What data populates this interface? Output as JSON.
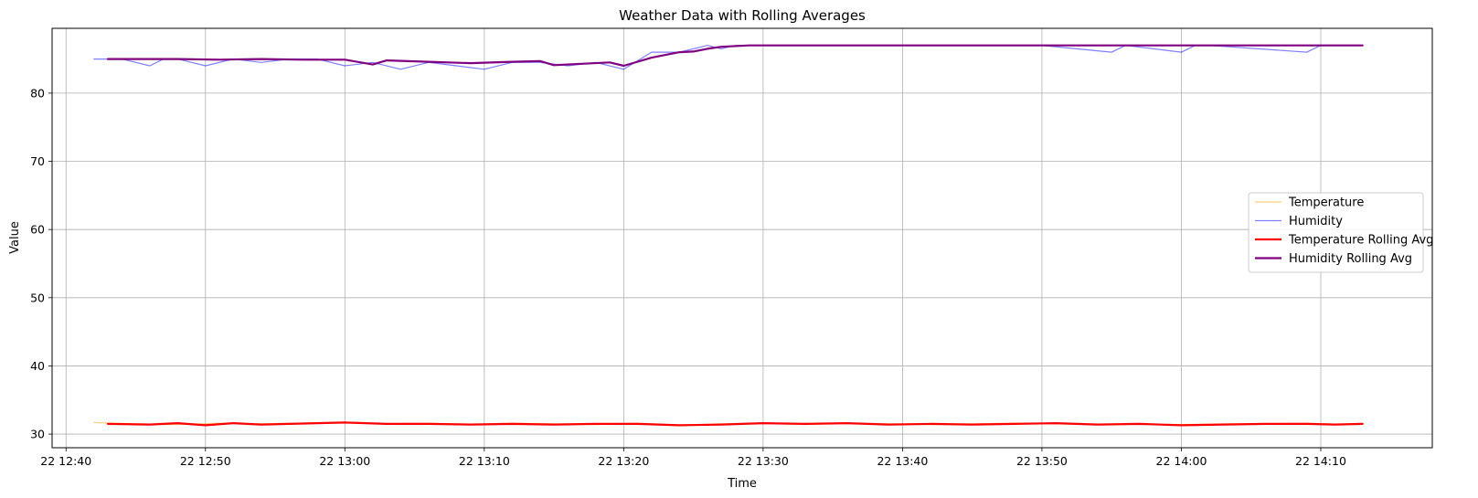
{
  "chart_data": {
    "type": "line",
    "title": "Weather Data with Rolling Averages",
    "xlabel": "Time",
    "ylabel": "Value",
    "x_unit": "time (day 22, hh:mm)",
    "xlim": [
      "22 12:39",
      "22 14:18"
    ],
    "ylim": [
      28,
      89.5
    ],
    "x_ticks": [
      "22 12:40",
      "22 12:50",
      "22 13:00",
      "22 13:10",
      "22 13:20",
      "22 13:30",
      "22 13:40",
      "22 13:50",
      "22 14:00",
      "22 14:10"
    ],
    "y_ticks": [
      30,
      40,
      50,
      60,
      70,
      80
    ],
    "grid": true,
    "legend_position": "center-right",
    "series": [
      {
        "name": "Temperature",
        "color": "#ffa500",
        "alpha": 0.5,
        "line_width": 1.2,
        "x": [
          "22 12:42",
          "22 12:45",
          "22 12:48",
          "22 12:51",
          "22 12:54",
          "22 12:57",
          "22 13:00",
          "22 13:03",
          "22 13:06",
          "22 13:09",
          "22 13:12",
          "22 13:15",
          "22 13:18",
          "22 13:21",
          "22 13:24",
          "22 13:27",
          "22 13:30",
          "22 13:33",
          "22 13:36",
          "22 13:39",
          "22 13:42",
          "22 13:45",
          "22 13:48",
          "22 13:51",
          "22 13:54",
          "22 13:57",
          "22 14:00",
          "22 14:03",
          "22 14:06",
          "22 14:09",
          "22 14:12",
          "22 14:13"
        ],
        "y": [
          31.7,
          31.5,
          31.4,
          31.6,
          31.5,
          31.6,
          31.7,
          31.5,
          31.6,
          31.4,
          31.6,
          31.5,
          31.4,
          31.6,
          31.3,
          31.5,
          31.6,
          31.4,
          31.6,
          31.5,
          31.4,
          31.5,
          31.6,
          31.5,
          31.4,
          31.5,
          31.4,
          31.5,
          31.5,
          31.6,
          31.4,
          31.6
        ]
      },
      {
        "name": "Humidity",
        "color": "#0000ff",
        "alpha": 0.5,
        "line_width": 1.2,
        "x": [
          "22 12:42",
          "22 12:44",
          "22 12:46",
          "22 12:47",
          "22 12:48",
          "22 12:50",
          "22 12:52",
          "22 12:54",
          "22 12:56",
          "22 12:58",
          "22 13:00",
          "22 13:02",
          "22 13:04",
          "22 13:06",
          "22 13:08",
          "22 13:10",
          "22 13:12",
          "22 13:14",
          "22 13:16",
          "22 13:18",
          "22 13:20",
          "22 13:22",
          "22 13:24",
          "22 13:26",
          "22 13:27",
          "22 13:28",
          "22 13:30",
          "22 13:40",
          "22 13:50",
          "22 13:55",
          "22 13:56",
          "22 14:00",
          "22 14:01",
          "22 14:02",
          "22 14:09",
          "22 14:10",
          "22 14:13"
        ],
        "y": [
          85,
          85,
          84,
          85,
          85,
          84,
          85,
          84.5,
          85,
          85,
          84,
          84.5,
          83.5,
          84.5,
          84,
          83.5,
          84.5,
          84.5,
          84,
          84.5,
          83.5,
          86,
          86,
          87,
          86.5,
          87,
          87,
          87,
          87,
          86,
          87,
          86,
          87,
          87,
          86,
          87,
          87
        ]
      },
      {
        "name": "Temperature Rolling Avg",
        "color": "#ff0000",
        "alpha": 1,
        "line_width": 2.2,
        "x": [
          "22 12:43",
          "22 12:46",
          "22 12:48",
          "22 12:50",
          "22 12:52",
          "22 12:54",
          "22 12:56",
          "22 12:58",
          "22 13:00",
          "22 13:03",
          "22 13:06",
          "22 13:09",
          "22 13:12",
          "22 13:15",
          "22 13:18",
          "22 13:21",
          "22 13:24",
          "22 13:27",
          "22 13:30",
          "22 13:33",
          "22 13:36",
          "22 13:39",
          "22 13:42",
          "22 13:45",
          "22 13:48",
          "22 13:51",
          "22 13:54",
          "22 13:57",
          "22 14:00",
          "22 14:03",
          "22 14:06",
          "22 14:09",
          "22 14:11",
          "22 14:13"
        ],
        "y": [
          31.5,
          31.4,
          31.6,
          31.3,
          31.6,
          31.4,
          31.5,
          31.6,
          31.7,
          31.5,
          31.5,
          31.4,
          31.5,
          31.4,
          31.5,
          31.5,
          31.3,
          31.4,
          31.6,
          31.5,
          31.6,
          31.4,
          31.5,
          31.4,
          31.5,
          31.6,
          31.4,
          31.5,
          31.3,
          31.4,
          31.5,
          31.5,
          31.4,
          31.5
        ]
      },
      {
        "name": "Humidity Rolling Avg",
        "color": "#800080",
        "alpha": 1,
        "line_width": 2.2,
        "x": [
          "22 12:43",
          "22 12:46",
          "22 12:48",
          "22 12:51",
          "22 12:54",
          "22 12:57",
          "22 13:00",
          "22 13:02",
          "22 13:03",
          "22 13:06",
          "22 13:09",
          "22 13:12",
          "22 13:14",
          "22 13:15",
          "22 13:17",
          "22 13:19",
          "22 13:20",
          "22 13:22",
          "22 13:24",
          "22 13:25",
          "22 13:26",
          "22 13:27",
          "22 13:29",
          "22 13:30",
          "22 13:40",
          "22 13:50",
          "22 13:55",
          "22 13:56",
          "22 14:00",
          "22 14:05",
          "22 14:09",
          "22 14:10",
          "22 14:13"
        ],
        "y": [
          85,
          85,
          85,
          84.9,
          85,
          84.9,
          84.9,
          84.2,
          84.8,
          84.6,
          84.4,
          84.6,
          84.7,
          84.1,
          84.3,
          84.5,
          84,
          85.2,
          86,
          86.1,
          86.5,
          86.8,
          87,
          87,
          87,
          87,
          87,
          87,
          87,
          87,
          87,
          87,
          87
        ]
      }
    ]
  }
}
